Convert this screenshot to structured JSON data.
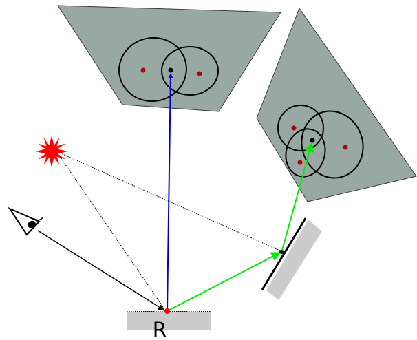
{
  "diagram": {
    "receiver_label": "R",
    "colors": {
      "panel_fill": "#98a8a3",
      "mirror_fill": "#cccccc",
      "red_dot": "#b40000",
      "blue_arrow": "#0000cc",
      "green_arrow": "#00ee00",
      "light_source": "#ff0000"
    },
    "icons": [
      "eye-icon",
      "light-source-icon"
    ]
  }
}
